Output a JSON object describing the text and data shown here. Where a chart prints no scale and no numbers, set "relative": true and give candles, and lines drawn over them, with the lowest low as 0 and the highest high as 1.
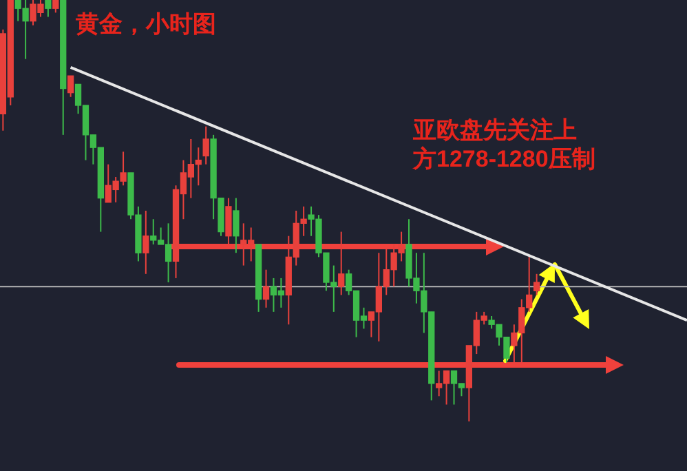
{
  "chart_data": {
    "type": "candlestick",
    "relative": true,
    "title": "黄金，小时图",
    "annotations": [
      "亚欧盘先关注上方1278-1280压制"
    ],
    "categories": [
      null,
      null,
      null,
      null,
      null,
      null,
      null,
      null,
      null,
      null,
      null,
      null,
      null,
      null,
      null,
      null,
      null,
      null,
      null,
      null,
      null,
      null,
      null,
      null,
      null,
      null,
      null,
      null,
      null,
      null,
      null,
      null,
      null,
      null,
      null,
      null,
      null,
      null,
      null,
      null,
      null,
      null,
      null,
      null,
      null,
      null,
      null,
      null,
      null,
      null,
      null,
      null,
      null,
      null,
      null,
      null,
      null,
      null,
      null,
      null,
      null,
      null,
      null,
      null,
      null,
      null,
      null,
      null,
      null,
      null,
      null,
      null,
      null,
      null,
      null,
      null,
      null,
      null,
      null,
      null,
      null,
      null,
      null,
      null,
      null,
      null,
      null,
      null,
      null,
      null,
      null,
      null
    ],
    "ohlc": [
      [
        0.73,
        0.93,
        0.69,
        0.92
      ],
      [
        0.77,
        1.0,
        0.75,
        1.0
      ],
      [
        1.0,
        1.0,
        0.95,
        0.98
      ],
      [
        0.98,
        1.0,
        0.86,
        0.95
      ],
      [
        0.95,
        1.0,
        0.94,
        0.99
      ],
      [
        0.97,
        1.0,
        0.96,
        0.99
      ],
      [
        1.0,
        1.0,
        0.96,
        0.98
      ],
      [
        0.98,
        1.0,
        0.97,
        1.0
      ],
      [
        1.0,
        1.0,
        0.68,
        0.79
      ],
      [
        0.78,
        0.82,
        0.77,
        0.82
      ],
      [
        0.8,
        0.8,
        0.73,
        0.75
      ],
      [
        0.75,
        0.75,
        0.62,
        0.68
      ],
      [
        0.68,
        0.68,
        0.61,
        0.65
      ],
      [
        0.65,
        0.65,
        0.45,
        0.53
      ],
      [
        0.52,
        0.61,
        0.52,
        0.56
      ],
      [
        0.55,
        0.58,
        0.52,
        0.57
      ],
      [
        0.57,
        0.64,
        0.56,
        0.59
      ],
      [
        0.59,
        0.59,
        0.48,
        0.49
      ],
      [
        0.49,
        0.51,
        0.38,
        0.4
      ],
      [
        0.4,
        0.5,
        0.35,
        0.44
      ],
      [
        0.44,
        0.48,
        0.42,
        0.43
      ],
      [
        0.43,
        0.46,
        0.42,
        0.42
      ],
      [
        0.42,
        0.47,
        0.33,
        0.38
      ],
      [
        0.38,
        0.56,
        0.34,
        0.55
      ],
      [
        0.54,
        0.62,
        0.48,
        0.59
      ],
      [
        0.58,
        0.67,
        0.53,
        0.61
      ],
      [
        0.61,
        0.65,
        0.56,
        0.62
      ],
      [
        0.63,
        0.7,
        0.61,
        0.67
      ],
      [
        0.67,
        0.68,
        0.48,
        0.53
      ],
      [
        0.53,
        0.53,
        0.44,
        0.45
      ],
      [
        0.44,
        0.53,
        0.42,
        0.51
      ],
      [
        0.5,
        0.53,
        0.4,
        0.44
      ],
      [
        0.42,
        0.47,
        0.37,
        0.43
      ],
      [
        0.42,
        0.46,
        0.38,
        0.43
      ],
      [
        0.42,
        0.42,
        0.26,
        0.29
      ],
      [
        0.29,
        0.36,
        0.27,
        0.32
      ],
      [
        0.32,
        0.34,
        0.26,
        0.3
      ],
      [
        0.31,
        0.34,
        0.27,
        0.3
      ],
      [
        0.3,
        0.44,
        0.23,
        0.39
      ],
      [
        0.39,
        0.5,
        0.37,
        0.47
      ],
      [
        0.47,
        0.51,
        0.44,
        0.48
      ],
      [
        0.49,
        0.51,
        0.44,
        0.48
      ],
      [
        0.48,
        0.49,
        0.39,
        0.4
      ],
      [
        0.4,
        0.4,
        0.31,
        0.33
      ],
      [
        0.33,
        0.37,
        0.26,
        0.32
      ],
      [
        0.32,
        0.45,
        0.3,
        0.35
      ],
      [
        0.35,
        0.36,
        0.3,
        0.31
      ],
      [
        0.31,
        0.31,
        0.2,
        0.24
      ],
      [
        0.25,
        0.27,
        0.22,
        0.24
      ],
      [
        0.24,
        0.26,
        0.2,
        0.26
      ],
      [
        0.26,
        0.4,
        0.19,
        0.32
      ],
      [
        0.32,
        0.41,
        0.3,
        0.36
      ],
      [
        0.36,
        0.42,
        0.32,
        0.4
      ],
      [
        0.4,
        0.45,
        0.38,
        0.42
      ],
      [
        0.42,
        0.48,
        0.32,
        0.34
      ],
      [
        0.34,
        0.4,
        0.28,
        0.31
      ],
      [
        0.31,
        0.4,
        0.21,
        0.26
      ],
      [
        0.26,
        0.26,
        0.05,
        0.09
      ],
      [
        0.08,
        0.12,
        0.06,
        0.09
      ],
      [
        0.09,
        0.12,
        0.04,
        0.12
      ],
      [
        0.12,
        0.12,
        0.04,
        0.09
      ],
      [
        0.09,
        0.09,
        0.06,
        0.08
      ],
      [
        0.08,
        0.18,
        0.0,
        0.18
      ],
      [
        0.18,
        0.26,
        0.16,
        0.24
      ],
      [
        0.24,
        0.26,
        0.23,
        0.25
      ],
      [
        0.24,
        0.25,
        0.22,
        0.23
      ],
      [
        0.23,
        0.23,
        0.18,
        0.2
      ],
      [
        0.2,
        0.2,
        0.14,
        0.15
      ],
      [
        0.18,
        0.23,
        0.14,
        0.21
      ],
      [
        0.21,
        0.29,
        0.14,
        0.27
      ],
      [
        0.27,
        0.39,
        0.26,
        0.3
      ],
      [
        0.31,
        0.35,
        0.3,
        0.33
      ],
      null,
      null,
      null,
      null,
      null,
      null,
      null,
      null,
      null,
      null,
      null,
      null,
      null,
      null,
      null,
      null,
      null,
      null,
      null,
      null
    ],
    "colors": [
      "#e8413c",
      "#e8413c",
      "#3dbb4a",
      "#3dbb4a",
      "#e8413c",
      "#e8413c",
      "#3dbb4a",
      "#e8413c",
      "#3dbb4a",
      "#e8413c",
      "#3dbb4a",
      "#3dbb4a",
      "#3dbb4a",
      "#3dbb4a",
      "#e8413c",
      "#e8413c",
      "#e8413c",
      "#3dbb4a",
      "#3dbb4a",
      "#e8413c",
      "#3dbb4a",
      "#3dbb4a",
      "#3dbb4a",
      "#e8413c",
      "#e8413c",
      "#e8413c",
      "#e8413c",
      "#e8413c",
      "#3dbb4a",
      "#3dbb4a",
      "#e8413c",
      "#3dbb4a",
      "#e8413c",
      "#e8413c",
      "#3dbb4a",
      "#e8413c",
      "#3dbb4a",
      "#3dbb4a",
      "#e8413c",
      "#e8413c",
      "#e8413c",
      "#3dbb4a",
      "#3dbb4a",
      "#3dbb4a",
      "#3dbb4a",
      "#e8413c",
      "#3dbb4a",
      "#3dbb4a",
      "#3dbb4a",
      "#e8413c",
      "#e8413c",
      "#e8413c",
      "#e8413c",
      "#e8413c",
      "#3dbb4a",
      "#3dbb4a",
      "#3dbb4a",
      "#3dbb4a",
      "#e8413c",
      "#e8413c",
      "#3dbb4a",
      "#3dbb4a",
      "#e8413c",
      "#e8413c",
      "#e8413c",
      "#3dbb4a",
      "#3dbb4a",
      "#3dbb4a",
      "#e8413c",
      "#e8413c",
      "#e8413c",
      "#e8413c",
      null,
      null,
      null,
      null,
      null,
      null,
      null,
      null,
      null,
      null,
      null,
      null,
      null,
      null,
      null,
      null,
      null,
      null,
      null,
      null
    ],
    "series": [
      {
        "type": "line",
        "color": "#e6e6e6",
        "values": [
          null,
          null,
          null,
          null,
          null,
          null,
          null,
          null,
          null,
          0.84,
          null,
          null,
          null,
          null,
          null,
          null,
          null,
          null,
          null,
          null,
          null,
          null,
          null,
          null,
          null,
          null,
          null,
          null,
          null,
          null,
          null,
          null,
          null,
          null,
          null,
          null,
          null,
          null,
          null,
          null,
          null,
          null,
          null,
          null,
          null,
          null,
          null,
          null,
          null,
          null,
          null,
          null,
          null,
          null,
          null,
          null,
          null,
          null,
          null,
          null,
          null,
          null,
          null,
          null,
          null,
          null,
          null,
          null,
          null,
          null,
          null,
          null,
          null,
          null,
          null,
          null,
          null,
          null,
          null,
          null,
          null,
          null,
          null,
          null,
          null,
          null,
          null,
          null,
          null,
          null,
          null,
          0.24
        ]
      }
    ],
    "ref_lines": [
      {
        "axis": "y",
        "value": 0.32,
        "color": "#b4b4b4"
      }
    ]
  }
}
